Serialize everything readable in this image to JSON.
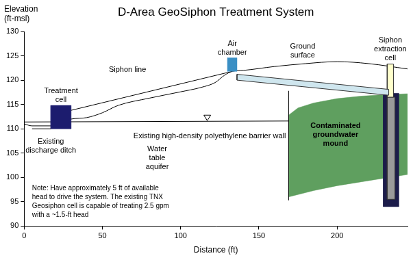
{
  "chart_data": {
    "type": "line",
    "title": "D-Area GeoSiphon Treatment System",
    "x_label": "Distance (ft)",
    "y_label": [
      "Elevation",
      "(ft-msl)"
    ],
    "xlim": [
      0,
      245
    ],
    "xticks": [
      0,
      50,
      100,
      150,
      200
    ],
    "ylim": [
      90,
      130
    ],
    "yticks": [
      90,
      95,
      100,
      105,
      110,
      115,
      120,
      125,
      130
    ],
    "grid": false,
    "note": [
      "Note: Have approximately 5 ft of available",
      "head to drive the system. The existing TNX",
      "Geosiphon cell is capable of treating 2.5 gpm",
      "with a ~1.5-ft head"
    ],
    "series": [
      {
        "name": [
          "Contaminated",
          "groundwater",
          "mound"
        ],
        "type": "area",
        "color": "#5f9f5f",
        "x": [
          169,
          175,
          185,
          200,
          215,
          230,
          245,
          245,
          225,
          200,
          185,
          169,
          169
        ],
        "values": [
          112.8,
          114.3,
          115.3,
          116.2,
          116.7,
          117,
          117.2,
          100.6,
          99.6,
          98.3,
          97.3,
          96,
          112.8
        ]
      },
      {
        "name": [
          "Existing high-density polyethylene barrier wall"
        ],
        "type": "line",
        "color": "#000000",
        "x": [
          169,
          169
        ],
        "values": [
          95.3,
          117.8
        ]
      },
      {
        "name": [
          "Water",
          "table",
          "aquifer"
        ],
        "type": "line",
        "color": "#000000",
        "x": [
          0,
          169
        ],
        "values": [
          111.4,
          111.6
        ]
      },
      {
        "name": [
          "Ground",
          "surface"
        ],
        "type": "line",
        "color": "#000000",
        "x": [
          0,
          5,
          17,
          30,
          40,
          50,
          60,
          80,
          100,
          113,
          122,
          128,
          133,
          140,
          160,
          180,
          200,
          220,
          245
        ],
        "values": [
          111,
          110.6,
          110.6,
          112,
          112.3,
          113.3,
          114.8,
          116.3,
          117.6,
          118.5,
          119.5,
          121,
          121.8,
          122,
          122.8,
          123.4,
          123.8,
          123.4,
          122.3
        ]
      },
      {
        "name": [
          "Siphon line"
        ],
        "type": "line",
        "color": "#000000",
        "x": [
          30,
          133
        ],
        "values": [
          113.8,
          121.8
        ]
      },
      {
        "type": "area",
        "color": "#1c1c4a",
        "x": [
          229.5,
          239.5,
          239.5,
          229.5,
          229.5
        ],
        "values": [
          94,
          94,
          117.3,
          117.3,
          94
        ]
      },
      {
        "type": "area",
        "color": "#9a9a9a",
        "x": [
          232,
          237,
          237,
          232,
          232
        ],
        "values": [
          95.5,
          95.5,
          116.5,
          116.5,
          95.5
        ]
      },
      {
        "name": [
          "Siphon",
          "extraction",
          "cell"
        ],
        "type": "area",
        "color": "#ffffcc",
        "x": [
          232,
          236,
          236,
          232,
          232
        ],
        "values": [
          116.5,
          116.5,
          123.3,
          123.3,
          116.5
        ]
      },
      {
        "type": "area",
        "color": "#cfe6ee",
        "x": [
          136,
          233,
          233,
          136,
          136
        ],
        "values": [
          120,
          116.9,
          118.1,
          121.2,
          120
        ]
      },
      {
        "name": [
          "Air",
          "chamber"
        ],
        "type": "area",
        "color": "#3a8fc4",
        "x": [
          130,
          136,
          136,
          130,
          130
        ],
        "values": [
          121.8,
          121.8,
          124.6,
          124.6,
          121.8
        ]
      },
      {
        "name": [
          "Treatment",
          "cell"
        ],
        "type": "area",
        "color": "#1c1c6e",
        "x": [
          17,
          30,
          30,
          17,
          17
        ],
        "values": [
          110,
          110,
          114.8,
          114.8,
          110
        ]
      },
      {
        "name": [
          "Existing",
          "discharge ditch"
        ],
        "type": "line",
        "color": "#000000",
        "x": [
          5,
          17
        ],
        "values": [
          110,
          110
        ]
      }
    ]
  }
}
